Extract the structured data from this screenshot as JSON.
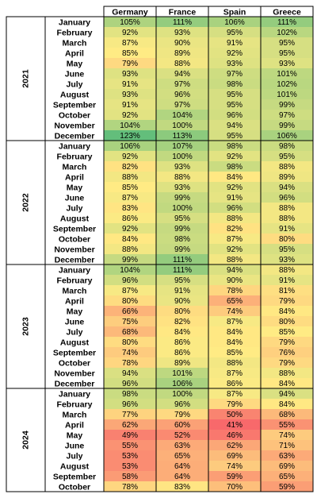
{
  "chart_data": {
    "type": "heatmap",
    "title": "",
    "columns": [
      "Germany",
      "France",
      "Spain",
      "Greece"
    ],
    "colors": {
      "low": "#f8696b",
      "mid": "#ffeb84",
      "high": "#63be7b"
    },
    "color_scale": {
      "min": 41,
      "mid": 85,
      "max": 123
    },
    "groups": [
      {
        "year": "2021",
        "rows": [
          {
            "month": "January",
            "labels": [
              "105%",
              "111%",
              "106%",
              "111%"
            ],
            "values": [
              105,
              111,
              106,
              111
            ]
          },
          {
            "month": "February",
            "labels": [
              "92%",
              "93%",
              "95%",
              "102%"
            ],
            "values": [
              92,
              93,
              95,
              102
            ]
          },
          {
            "month": "March",
            "labels": [
              "87%",
              "90%",
              "91%",
              "95%"
            ],
            "values": [
              87,
              90,
              91,
              95
            ]
          },
          {
            "month": "April",
            "labels": [
              "85%",
              "89%",
              "92%",
              "95%"
            ],
            "values": [
              85,
              89,
              92,
              95
            ]
          },
          {
            "month": "May",
            "labels": [
              "79%",
              "88%",
              "93%",
              "93%"
            ],
            "values": [
              79,
              88,
              93,
              93
            ]
          },
          {
            "month": "June",
            "labels": [
              "93%",
              "94%",
              "97%",
              "101%"
            ],
            "values": [
              93,
              94,
              97,
              101
            ]
          },
          {
            "month": "July",
            "labels": [
              "91%",
              "97%",
              "98%",
              "102%"
            ],
            "values": [
              91,
              97,
              98,
              102
            ]
          },
          {
            "month": "August",
            "labels": [
              "93%",
              "96%",
              "95%",
              "101%"
            ],
            "values": [
              93,
              96,
              95,
              101
            ]
          },
          {
            "month": "September",
            "labels": [
              "91%",
              "97%",
              "95%",
              "99%"
            ],
            "values": [
              91,
              97,
              95,
              99
            ]
          },
          {
            "month": "October",
            "labels": [
              "92%",
              "104%",
              "96%",
              "97%"
            ],
            "values": [
              92,
              104,
              96,
              97
            ]
          },
          {
            "month": "November",
            "labels": [
              "104%",
              "100%",
              "94%",
              "99%"
            ],
            "values": [
              104,
              100,
              94,
              99
            ]
          },
          {
            "month": "December",
            "labels": [
              "123%",
              "113%",
              "95%",
              "106%"
            ],
            "values": [
              123,
              113,
              95,
              106
            ]
          }
        ]
      },
      {
        "year": "2022",
        "rows": [
          {
            "month": "January",
            "labels": [
              "106%",
              "107%",
              "98%",
              "98%"
            ],
            "values": [
              106,
              107,
              98,
              98
            ]
          },
          {
            "month": "February",
            "labels": [
              "92%",
              "100%",
              "92%",
              "95%"
            ],
            "values": [
              92,
              100,
              92,
              95
            ]
          },
          {
            "month": "March",
            "labels": [
              "82%",
              "93%",
              "98%",
              "88%"
            ],
            "values": [
              82,
              93,
              98,
              88
            ]
          },
          {
            "month": "April",
            "labels": [
              "88%",
              "88%",
              "84%",
              "89%"
            ],
            "values": [
              88,
              88,
              84,
              89
            ]
          },
          {
            "month": "May",
            "labels": [
              "85%",
              "93%",
              "92%",
              "94%"
            ],
            "values": [
              85,
              93,
              92,
              94
            ]
          },
          {
            "month": "June",
            "labels": [
              "87%",
              "99%",
              "91%",
              "96%"
            ],
            "values": [
              87,
              99,
              91,
              96
            ]
          },
          {
            "month": "July",
            "labels": [
              "83%",
              "100%",
              "96%",
              "88%"
            ],
            "values": [
              83,
              100,
              96,
              88
            ]
          },
          {
            "month": "August",
            "labels": [
              "86%",
              "95%",
              "88%",
              "88%"
            ],
            "values": [
              86,
              95,
              88,
              88
            ]
          },
          {
            "month": "September",
            "labels": [
              "92%",
              "99%",
              "82%",
              "91%"
            ],
            "values": [
              92,
              99,
              82,
              91
            ]
          },
          {
            "month": "October",
            "labels": [
              "84%",
              "98%",
              "87%",
              "80%"
            ],
            "values": [
              84,
              98,
              87,
              80
            ]
          },
          {
            "month": "November",
            "labels": [
              "88%",
              "99%",
              "92%",
              "95%"
            ],
            "values": [
              88,
              99,
              92,
              95
            ]
          },
          {
            "month": "December",
            "labels": [
              "99%",
              "111%",
              "88%",
              "93%"
            ],
            "values": [
              99,
              111,
              88,
              93
            ]
          }
        ]
      },
      {
        "year": "2023",
        "rows": [
          {
            "month": "January",
            "labels": [
              "104%",
              "111%",
              "94%",
              "88%"
            ],
            "values": [
              104,
              111,
              94,
              88
            ]
          },
          {
            "month": "February",
            "labels": [
              "96%",
              "95%",
              "90%",
              "91%"
            ],
            "values": [
              96,
              95,
              90,
              91
            ]
          },
          {
            "month": "March",
            "labels": [
              "87%",
              "91%",
              "78%",
              "81%"
            ],
            "values": [
              87,
              91,
              78,
              81
            ]
          },
          {
            "month": "April",
            "labels": [
              "80%",
              "90%",
              "65%",
              "79%"
            ],
            "values": [
              80,
              90,
              65,
              79
            ]
          },
          {
            "month": "May",
            "labels": [
              "66%",
              "80%",
              "74%",
              "84%"
            ],
            "values": [
              66,
              80,
              74,
              84
            ]
          },
          {
            "month": "June",
            "labels": [
              "75%",
              "82%",
              "87%",
              "80%"
            ],
            "values": [
              75,
              82,
              87,
              80
            ]
          },
          {
            "month": "July",
            "labels": [
              "68%",
              "84%",
              "84%",
              "85%"
            ],
            "values": [
              68,
              84,
              84,
              85
            ]
          },
          {
            "month": "August",
            "labels": [
              "80%",
              "86%",
              "84%",
              "79%"
            ],
            "values": [
              80,
              86,
              84,
              79
            ]
          },
          {
            "month": "September",
            "labels": [
              "74%",
              "86%",
              "85%",
              "76%"
            ],
            "values": [
              74,
              86,
              85,
              76
            ]
          },
          {
            "month": "October",
            "labels": [
              "78%",
              "89%",
              "88%",
              "79%"
            ],
            "values": [
              78,
              89,
              88,
              79
            ]
          },
          {
            "month": "November",
            "labels": [
              "94%",
              "101%",
              "87%",
              "88%"
            ],
            "values": [
              94,
              101,
              87,
              88
            ]
          },
          {
            "month": "December",
            "labels": [
              "96%",
              "106%",
              "86%",
              "84%"
            ],
            "values": [
              96,
              106,
              86,
              84
            ]
          }
        ]
      },
      {
        "year": "2024",
        "rows": [
          {
            "month": "January",
            "labels": [
              "98%",
              "100%",
              "87%",
              "94%"
            ],
            "values": [
              98,
              100,
              87,
              94
            ]
          },
          {
            "month": "February",
            "labels": [
              "96%",
              "96%",
              "79%",
              "84%"
            ],
            "values": [
              96,
              96,
              79,
              84
            ]
          },
          {
            "month": "March",
            "labels": [
              "77%",
              "79%",
              "50%",
              "68%"
            ],
            "values": [
              77,
              79,
              50,
              68
            ]
          },
          {
            "month": "April",
            "labels": [
              "62%",
              "60%",
              "41%",
              "55%"
            ],
            "values": [
              62,
              60,
              41,
              55
            ]
          },
          {
            "month": "May",
            "labels": [
              "49%",
              "52%",
              "46%",
              "74%"
            ],
            "values": [
              49,
              52,
              46,
              74
            ]
          },
          {
            "month": "June",
            "labels": [
              "55%",
              "63%",
              "62%",
              "71%"
            ],
            "values": [
              55,
              63,
              62,
              71
            ]
          },
          {
            "month": "July",
            "labels": [
              "53%",
              "65%",
              "69%",
              "63%"
            ],
            "values": [
              53,
              65,
              69,
              63
            ]
          },
          {
            "month": "August",
            "labels": [
              "53%",
              "64%",
              "74%",
              "69%"
            ],
            "values": [
              53,
              64,
              74,
              69
            ]
          },
          {
            "month": "September",
            "labels": [
              "58%",
              "64%",
              "59%",
              "65%"
            ],
            "values": [
              58,
              64,
              59,
              65
            ]
          },
          {
            "month": "October",
            "labels": [
              "78%",
              "83%",
              "70%",
              "59%"
            ],
            "values": [
              78,
              83,
              70,
              59
            ]
          }
        ]
      }
    ]
  }
}
